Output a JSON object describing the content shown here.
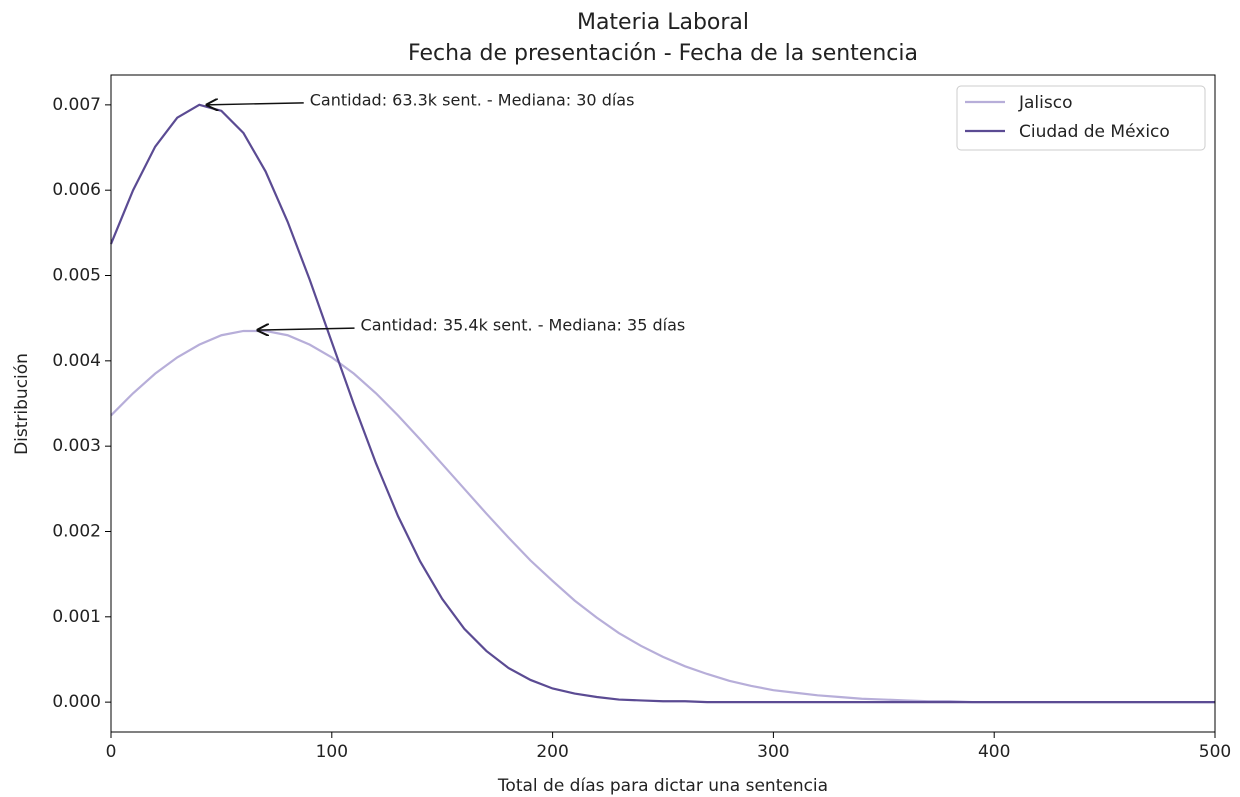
{
  "chart_data": {
    "type": "line",
    "title": "Materia Laboral",
    "subtitle": "Fecha de presentación - Fecha de la sentencia",
    "x_label": "Total de días para dictar una sentencia",
    "y_label": "Distribución",
    "x": [
      0,
      10,
      20,
      30,
      40,
      50,
      60,
      70,
      80,
      90,
      100,
      110,
      120,
      130,
      140,
      150,
      160,
      170,
      180,
      190,
      200,
      210,
      220,
      230,
      240,
      250,
      260,
      270,
      280,
      290,
      300,
      310,
      320,
      330,
      340,
      350,
      360,
      370,
      380,
      390,
      400,
      410,
      420,
      430,
      440,
      450,
      460,
      470,
      480,
      490,
      500
    ],
    "series": [
      {
        "name": "Jalisco",
        "color": "#b7aed9",
        "values": [
          0.00336,
          0.00362,
          0.00385,
          0.00404,
          0.00419,
          0.0043,
          0.00435,
          0.00435,
          0.0043,
          0.00419,
          0.00404,
          0.00385,
          0.00362,
          0.00336,
          0.00308,
          0.00279,
          0.0025,
          0.00221,
          0.00193,
          0.00166,
          0.00142,
          0.00119,
          0.00099,
          0.00081,
          0.00066,
          0.00053,
          0.00042,
          0.00033,
          0.00025,
          0.00019,
          0.00014,
          0.00011,
          8e-05,
          6e-05,
          4e-05,
          3e-05,
          2e-05,
          1e-05,
          1e-05,
          0,
          0,
          0,
          0,
          0,
          0,
          0,
          0,
          0,
          0,
          0,
          0
        ]
      },
      {
        "name": "Ciudad de México",
        "color": "#5b4b93",
        "values": [
          0.00537,
          0.006,
          0.00651,
          0.00685,
          0.007,
          0.00693,
          0.00667,
          0.00622,
          0.00563,
          0.00495,
          0.00422,
          0.00349,
          0.0028,
          0.00218,
          0.00165,
          0.00121,
          0.00086,
          0.0006,
          0.0004,
          0.00026,
          0.00016,
          0.0001,
          6e-05,
          3e-05,
          2e-05,
          1e-05,
          1e-05,
          0,
          0,
          0,
          0,
          0,
          0,
          0,
          0,
          0,
          0,
          0,
          0,
          0,
          0,
          0,
          0,
          0,
          0,
          0,
          0,
          0,
          0,
          0,
          0
        ]
      }
    ],
    "annotations": [
      {
        "text": "Cantidad:  63.3k sent. - Mediana: 30 días",
        "x": 42,
        "y": 0.007
      },
      {
        "text": "Cantidad:  35.4k sent. - Mediana: 35 días",
        "x": 65,
        "y": 0.00436
      }
    ],
    "xlim": [
      0,
      500
    ],
    "xticks": [
      0,
      100,
      200,
      300,
      400,
      500
    ],
    "ylim": [
      -0.00035,
      0.00735
    ],
    "yticks": [
      {
        "value": 0,
        "label": "0.000"
      },
      {
        "value": 0.001,
        "label": "0.001"
      },
      {
        "value": 0.002,
        "label": "0.002"
      },
      {
        "value": 0.003,
        "label": "0.003"
      },
      {
        "value": 0.004,
        "label": "0.004"
      },
      {
        "value": 0.005,
        "label": "0.005"
      },
      {
        "value": 0.006,
        "label": "0.006"
      },
      {
        "value": 0.007,
        "label": "0.007"
      }
    ],
    "grid": false,
    "legend": "upper right"
  }
}
